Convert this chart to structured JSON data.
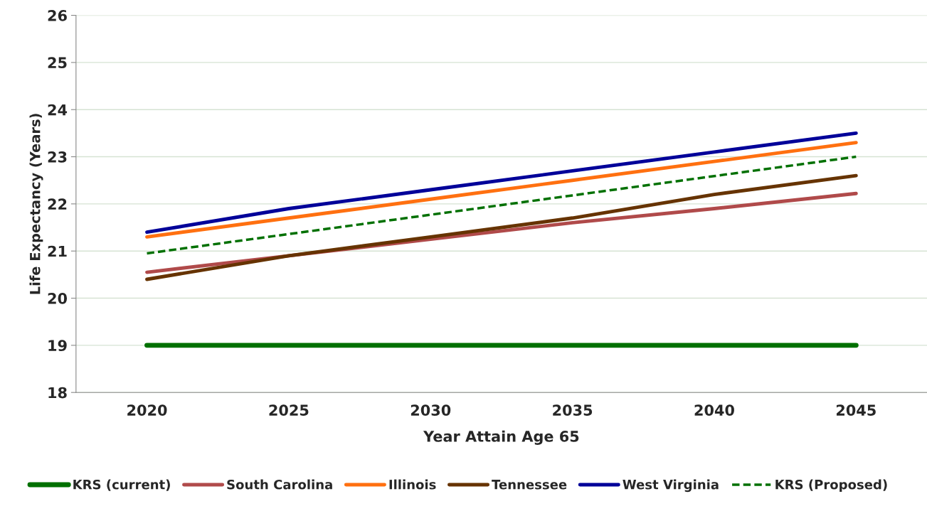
{
  "chart_data": {
    "type": "line",
    "xlabel": "Year Attain Age 65",
    "ylabel": "Life Expectancy (Years)",
    "categories": [
      "2020",
      "2025",
      "2030",
      "2035",
      "2040",
      "2045"
    ],
    "ylim": [
      18,
      26
    ],
    "yticks": [
      18,
      19,
      20,
      21,
      22,
      23,
      24,
      25,
      26
    ],
    "grid": "y",
    "legend": "bottom",
    "marker": "none",
    "series": [
      {
        "name": "KRS (current)",
        "color": "#007000",
        "values": [
          19,
          19,
          19,
          19,
          19,
          19
        ]
      },
      {
        "name": "South Carolina",
        "color": "#b04a4a",
        "values": [
          20.55,
          20.9,
          21.25,
          21.6,
          21.9,
          22.22
        ]
      },
      {
        "name": "Illinois",
        "color": "#ff7010",
        "values": [
          21.3,
          21.7,
          22.1,
          22.5,
          22.9,
          23.3
        ]
      },
      {
        "name": "Tennessee",
        "color": "#663300",
        "values": [
          20.4,
          20.9,
          21.3,
          21.7,
          22.2,
          22.6
        ]
      },
      {
        "name": "West Virginia",
        "color": "#000099",
        "values": [
          21.4,
          21.9,
          22.3,
          22.7,
          23.1,
          23.5
        ]
      },
      {
        "name": "KRS (Proposed)",
        "color": "#007000",
        "line_style": "dashed",
        "values": [
          20.95,
          21.36,
          21.77,
          22.18,
          22.59,
          23.0
        ]
      }
    ]
  }
}
